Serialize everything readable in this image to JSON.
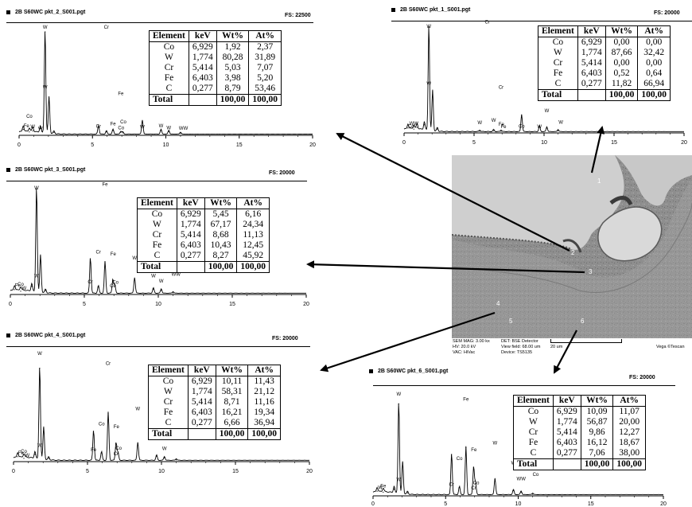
{
  "columns": [
    "Element",
    "keV",
    "Wt%",
    "At%"
  ],
  "panels": [
    {
      "title": "2B S60WC pkt_2_S001.pgt",
      "fs": "FS: 22500",
      "rows": [
        [
          "Co",
          "6,929",
          "1,92",
          "2,37"
        ],
        [
          "W",
          "1,774",
          "80,28",
          "31,89"
        ],
        [
          "Cr",
          "5,414",
          "5,03",
          "7,07"
        ],
        [
          "Fe",
          "6,403",
          "3,98",
          "5,20"
        ],
        [
          "C",
          "0,277",
          "8,79",
          "53,46"
        ]
      ],
      "total": [
        "Total",
        "",
        "100,00",
        "100,00"
      ],
      "peak_labels": [
        "W",
        "W",
        "Cr",
        "Fe",
        "Cr",
        "Fe",
        "Co",
        "Co",
        "W",
        "W",
        "W",
        "WW",
        "Co",
        "Fe",
        "W",
        "W"
      ]
    },
    {
      "title": "2B S60WC pkt_1_S001.pgt",
      "fs": "FS: 20000",
      "rows": [
        [
          "Co",
          "6,929",
          "0,00",
          "0,00"
        ],
        [
          "W",
          "1,774",
          "87,66",
          "32,42"
        ],
        [
          "Cr",
          "5,414",
          "0,00",
          "0,00"
        ],
        [
          "Fe",
          "6,403",
          "0,52",
          "0,64"
        ],
        [
          "C",
          "0,277",
          "11,82",
          "66,94"
        ]
      ],
      "total": [
        "Total",
        "",
        "100,00",
        "100,00"
      ],
      "peak_labels": [
        "W",
        "W",
        "W",
        "W",
        "Cr",
        "Cr",
        "Fe",
        "Fe",
        "Co",
        "W",
        "W",
        "W",
        "WW",
        "Co"
      ]
    },
    {
      "title": "2B S60WC pkt_3_S001.pgt",
      "fs": "FS: 20000",
      "rows": [
        [
          "Co",
          "6,929",
          "5,45",
          "6,16"
        ],
        [
          "W",
          "1,774",
          "67,17",
          "24,34"
        ],
        [
          "Cr",
          "5,414",
          "8,68",
          "11,13"
        ],
        [
          "Fe",
          "6,403",
          "10,43",
          "12,45"
        ],
        [
          "C",
          "0,277",
          "8,27",
          "45,92"
        ]
      ],
      "total": [
        "Total",
        "",
        "100,00",
        "100,00"
      ],
      "peak_labels": [
        "W",
        "W",
        "Cr",
        "Fe",
        "Cr",
        "Co",
        "Fe",
        "Co",
        "W",
        "W",
        "W",
        "WW",
        "Co",
        "Fe",
        "W"
      ]
    },
    {
      "title": "2B S60WC pkt_4_S001.pgt",
      "fs": "FS: 20000",
      "rows": [
        [
          "Co",
          "6,929",
          "10,11",
          "11,43"
        ],
        [
          "W",
          "1,774",
          "58,31",
          "21,12"
        ],
        [
          "Cr",
          "5,414",
          "8,71",
          "11,16"
        ],
        [
          "Fe",
          "6,403",
          "16,21",
          "19,34"
        ],
        [
          "C",
          "0,277",
          "6,66",
          "36,94"
        ]
      ],
      "total": [
        "Total",
        "",
        "100,00",
        "100,00"
      ],
      "peak_labels": [
        "W",
        "W",
        "Fe",
        "Cr",
        "Co",
        "Cr",
        "Fe",
        "Co",
        "W",
        "W",
        "W",
        "WW",
        "Co",
        "Fe",
        "W"
      ]
    },
    {
      "title": "2B S60WC pkt_6_S001.pgt",
      "fs": "FS: 20000",
      "rows": [
        [
          "Co",
          "6,929",
          "10,09",
          "11,07"
        ],
        [
          "W",
          "1,774",
          "56,87",
          "20,00"
        ],
        [
          "Cr",
          "5,414",
          "9,86",
          "12,27"
        ],
        [
          "Fe",
          "6,403",
          "16,12",
          "18,67"
        ],
        [
          "C",
          "0,277",
          "7,06",
          "38,00"
        ]
      ],
      "total": [
        "Total",
        "",
        "100,00",
        "100,00"
      ],
      "peak_labels": [
        "W",
        "W",
        "Cr",
        "Fe",
        "Co",
        "Cr",
        "Fe",
        "Co",
        "W",
        "W",
        "WW",
        "Co",
        "Fe",
        "W"
      ]
    }
  ],
  "sem": {
    "point_labels": [
      "1",
      "2",
      "3",
      "4",
      "5",
      "6"
    ],
    "footer": {
      "mag": "SEM MAG: 3.00 kx",
      "hv": "HV: 20.0 kV",
      "vac": "VAC: HiVac",
      "det": "DET: BSE Detector",
      "field": "View field: 68.00 um",
      "device": "Device: TS5135",
      "scale": "20 um",
      "brand": "Vega ©Tescan"
    }
  },
  "chart_data": [
    {
      "type": "line",
      "title": "2B S60WC pkt_2_S001.pgt",
      "xlim": [
        0,
        20
      ],
      "x_ticks": [
        "0",
        "5",
        "10",
        "15",
        "20"
      ],
      "ylim": [
        0,
        22500
      ],
      "series": [
        {
          "x": [
            0.28,
            0.7,
            0.93,
            1.45,
            1.77,
            2.04,
            2.38,
            5.41,
            5.95,
            6.4,
            6.93,
            7.06,
            8.4,
            9.67,
            10.2,
            11.0
          ],
          "y": [
            1200,
            700,
            900,
            1400,
            21200,
            7600,
            600,
            1800,
            700,
            1000,
            600,
            500,
            2900,
            1000,
            800,
            400
          ]
        }
      ]
    },
    {
      "type": "line",
      "title": "2B S60WC pkt_1_S001.pgt",
      "xlim": [
        0,
        20
      ],
      "x_ticks": [
        "0",
        "5",
        "10",
        "15",
        "20"
      ],
      "ylim": [
        0,
        20000
      ],
      "series": [
        {
          "x": [
            0.28,
            0.7,
            0.93,
            1.45,
            1.77,
            2.04,
            2.38,
            5.41,
            6.4,
            6.93,
            8.4,
            9.67,
            10.2,
            11.0
          ],
          "y": [
            900,
            700,
            1000,
            1500,
            19600,
            7600,
            700,
            300,
            400,
            300,
            3200,
            1100,
            900,
            400
          ]
        }
      ]
    },
    {
      "type": "line",
      "title": "2B S60WC pkt_3_S001.pgt",
      "xlim": [
        0,
        20
      ],
      "x_ticks": [
        "0",
        "5",
        "10",
        "15",
        "20"
      ],
      "ylim": [
        0,
        20000
      ],
      "series": [
        {
          "x": [
            0.28,
            0.7,
            1.45,
            1.77,
            2.04,
            2.38,
            5.41,
            5.95,
            6.4,
            6.93,
            7.06,
            8.4,
            9.67,
            10.2,
            11.0
          ],
          "y": [
            900,
            600,
            1500,
            19500,
            7000,
            700,
            6600,
            1400,
            5900,
            2600,
            1600,
            2900,
            1000,
            800,
            300
          ]
        }
      ]
    },
    {
      "type": "line",
      "title": "2B S60WC pkt_4_S001.pgt",
      "xlim": [
        0,
        20
      ],
      "x_ticks": [
        "0",
        "5",
        "10",
        "15",
        "20"
      ],
      "ylim": [
        0,
        20000
      ],
      "series": [
        {
          "x": [
            0.28,
            0.7,
            1.45,
            1.77,
            2.04,
            2.38,
            5.41,
            5.95,
            6.4,
            6.93,
            7.06,
            8.4,
            9.67,
            10.2,
            11.0
          ],
          "y": [
            900,
            600,
            1300,
            17000,
            6000,
            600,
            5500,
            1600,
            8800,
            3300,
            1500,
            3300,
            1000,
            700,
            300
          ]
        }
      ]
    },
    {
      "type": "line",
      "title": "2B S60WC pkt_6_S001.pgt",
      "xlim": [
        0,
        20
      ],
      "x_ticks": [
        "0",
        "5",
        "10",
        "15",
        "20"
      ],
      "ylim": [
        0,
        20000
      ],
      "series": [
        {
          "x": [
            0.28,
            0.7,
            1.45,
            1.77,
            2.04,
            2.38,
            5.41,
            5.95,
            6.4,
            6.93,
            7.06,
            8.4,
            9.67,
            10.2,
            11.0
          ],
          "y": [
            900,
            700,
            1300,
            17800,
            6300,
            600,
            8000,
            1600,
            9300,
            5500,
            2400,
            3200,
            1000,
            700,
            300
          ]
        }
      ]
    }
  ]
}
